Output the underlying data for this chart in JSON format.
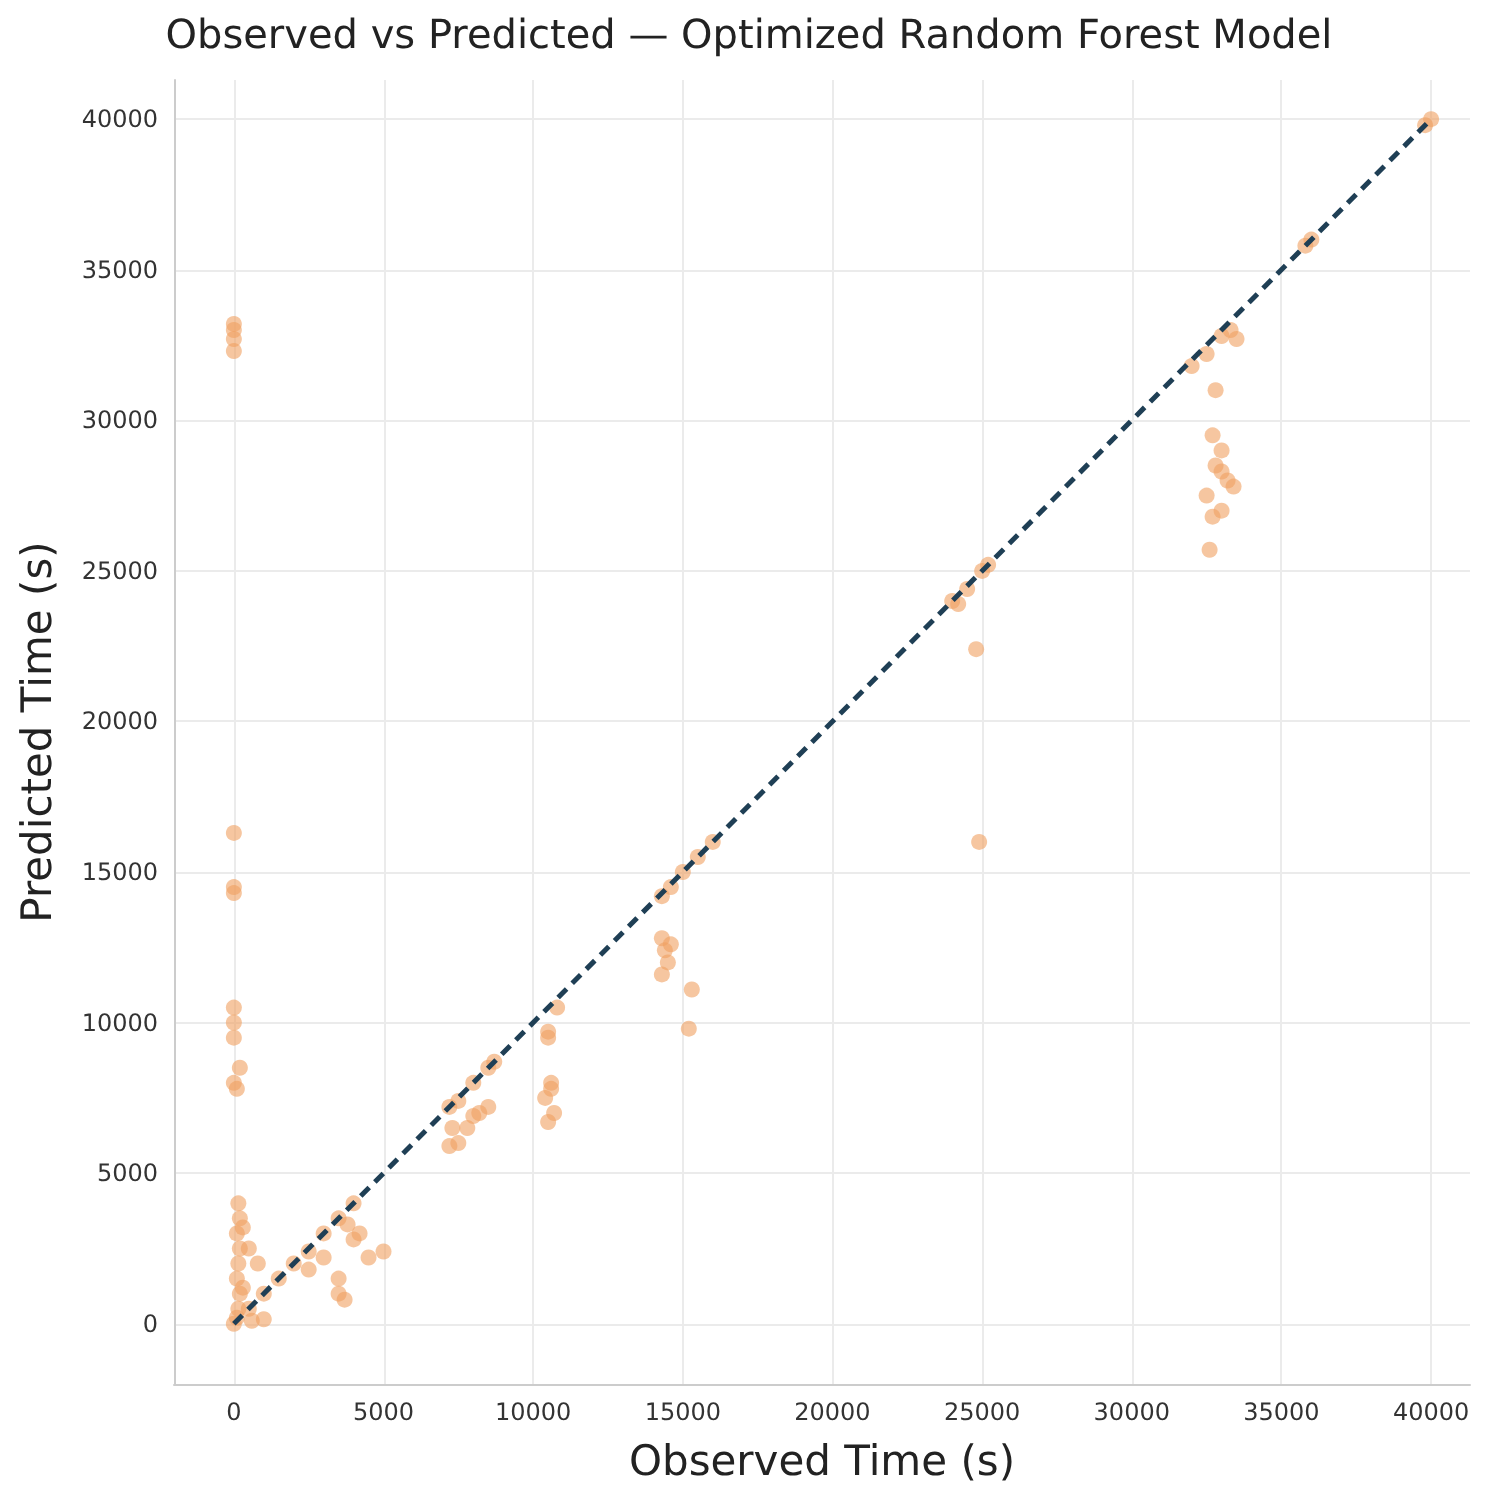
{
  "chart_data": {
    "type": "scatter",
    "title": "Observed vs Predicted — Optimized Random Forest Model",
    "xlabel": "Observed Time (s)",
    "ylabel": "Predicted Time (s)",
    "xlim": [
      -2000,
      41300
    ],
    "ylim": [
      -2000,
      41300
    ],
    "xticks": [
      0,
      5000,
      10000,
      15000,
      20000,
      25000,
      30000,
      35000,
      40000
    ],
    "yticks": [
      0,
      5000,
      10000,
      15000,
      20000,
      25000,
      30000,
      35000,
      40000
    ],
    "grid": true,
    "series": [
      {
        "color": "#f0a060",
        "marker": "circle",
        "x": [
          0,
          100,
          150,
          200,
          100,
          150,
          200,
          100,
          200,
          150,
          300,
          500,
          800,
          300,
          600,
          1000,
          0,
          200,
          100,
          0,
          0,
          0,
          0,
          0,
          0,
          0,
          0,
          0,
          0,
          500,
          1000,
          1500,
          2000,
          2500,
          3000,
          3500,
          4000,
          2500,
          3000,
          3500,
          3500,
          3700,
          4000,
          4500,
          5000,
          3800,
          4200,
          7200,
          7500,
          8000,
          8500,
          8700,
          7300,
          7500,
          7200,
          7800,
          8000,
          8500,
          8200,
          10500,
          10500,
          10600,
          10400,
          10700,
          10500,
          10800,
          10600,
          14300,
          14600,
          15000,
          15500,
          16000,
          14300,
          14400,
          14500,
          14300,
          14600,
          15300,
          15200,
          24000,
          24500,
          25000,
          25200,
          24200,
          24800,
          24900,
          32000,
          32500,
          33000,
          33300,
          32800,
          33500,
          32700,
          33000,
          32800,
          33200,
          32500,
          33000,
          32700,
          33400,
          32600,
          33000,
          35800,
          36000,
          39800,
          40000
        ],
        "values": [
          0,
          200,
          500,
          1000,
          1500,
          2000,
          2500,
          3000,
          3500,
          4000,
          3200,
          2500,
          2000,
          1200,
          100,
          150,
          8000,
          8500,
          7800,
          9500,
          10000,
          10500,
          14300,
          14500,
          16300,
          32300,
          32700,
          33000,
          33200,
          500,
          1000,
          1500,
          2000,
          2400,
          3000,
          3500,
          4000,
          1800,
          2200,
          1500,
          1000,
          800,
          2800,
          2200,
          2400,
          3300,
          3000,
          7200,
          7400,
          8000,
          8500,
          8700,
          6500,
          6000,
          5900,
          6500,
          6900,
          7200,
          7000,
          9700,
          9500,
          8000,
          7500,
          7000,
          6700,
          10500,
          7800,
          14200,
          14500,
          15000,
          15500,
          16000,
          12800,
          12400,
          12000,
          11600,
          12600,
          11100,
          9800,
          24000,
          24400,
          25000,
          25200,
          23900,
          22400,
          16000,
          31800,
          32200,
          32800,
          33000,
          31000,
          32700,
          29500,
          29000,
          28500,
          28000,
          27500,
          27000,
          26800,
          27800,
          25700,
          28300,
          35800,
          36000,
          39800,
          40000
        ]
      },
      {
        "type": "line",
        "color": "#1f3f55",
        "marker": "none",
        "line_style": "dashed",
        "x": [
          0,
          40000
        ],
        "values": [
          0,
          40000
        ]
      }
    ]
  }
}
